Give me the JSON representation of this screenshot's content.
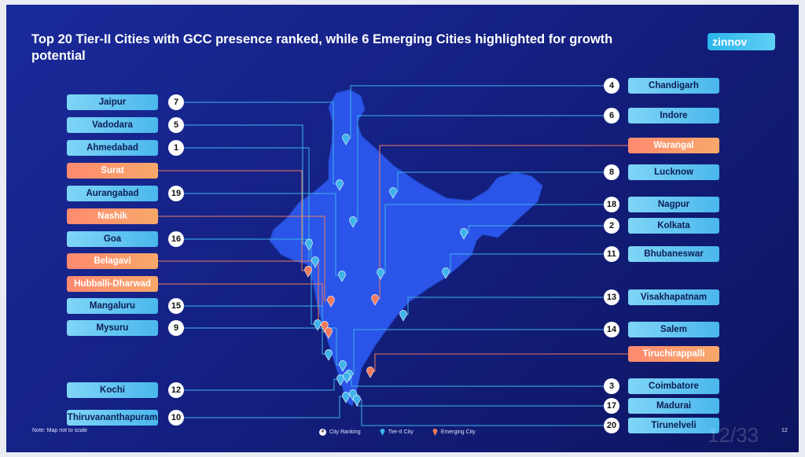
{
  "title": "Top 20 Tier-II Cities with GCC presence ranked, while 6 Emerging Cities highlighted for growth potential",
  "logo": "zinnov",
  "note": "Note: Map not to scale",
  "legend": {
    "ranking_symbol": "#",
    "ranking": "City Ranking",
    "tier2": "Tier-II City",
    "emerging": "Emerging City"
  },
  "page_watermark": "12/33",
  "page_number": "12",
  "colors": {
    "tier2": "#3fb4ea",
    "emerging": "#f07a5d",
    "map": "#2a55e8"
  },
  "cities_left": [
    {
      "name": "Jaipur",
      "rank": "7",
      "type": "tier2"
    },
    {
      "name": "Vadodara",
      "rank": "5",
      "type": "tier2"
    },
    {
      "name": "Ahmedabad",
      "rank": "1",
      "type": "tier2"
    },
    {
      "name": "Surat",
      "rank": "",
      "type": "emerging"
    },
    {
      "name": "Aurangabad",
      "rank": "19",
      "type": "tier2"
    },
    {
      "name": "Nashik",
      "rank": "",
      "type": "emerging"
    },
    {
      "name": "Goa",
      "rank": "16",
      "type": "tier2"
    },
    {
      "name": "Belagavi",
      "rank": "",
      "type": "emerging"
    },
    {
      "name": "Hubballi-Dharwad",
      "rank": "",
      "type": "emerging"
    },
    {
      "name": "Mangaluru",
      "rank": "15",
      "type": "tier2"
    },
    {
      "name": "Mysuru",
      "rank": "9",
      "type": "tier2"
    },
    {
      "name": "Kochi",
      "rank": "12",
      "type": "tier2"
    },
    {
      "name": "Thiruvananthapuram",
      "rank": "10",
      "type": "tier2"
    }
  ],
  "cities_right": [
    {
      "name": "Chandigarh",
      "rank": "4",
      "type": "tier2"
    },
    {
      "name": "Indore",
      "rank": "6",
      "type": "tier2"
    },
    {
      "name": "Warangal",
      "rank": "",
      "type": "emerging"
    },
    {
      "name": "Lucknow",
      "rank": "8",
      "type": "tier2"
    },
    {
      "name": "Nagpur",
      "rank": "18",
      "type": "tier2"
    },
    {
      "name": "Kolkata",
      "rank": "2",
      "type": "tier2"
    },
    {
      "name": "Bhubaneswar",
      "rank": "11",
      "type": "tier2"
    },
    {
      "name": "Visakhapatnam",
      "rank": "13",
      "type": "tier2"
    },
    {
      "name": "Salem",
      "rank": "14",
      "type": "tier2"
    },
    {
      "name": "Tiruchirappalli",
      "rank": "",
      "type": "emerging"
    },
    {
      "name": "Coimbatore",
      "rank": "3",
      "type": "tier2"
    },
    {
      "name": "Madurai",
      "rank": "17",
      "type": "tier2"
    },
    {
      "name": "Tirunelveli",
      "rank": "20",
      "type": "tier2"
    }
  ]
}
